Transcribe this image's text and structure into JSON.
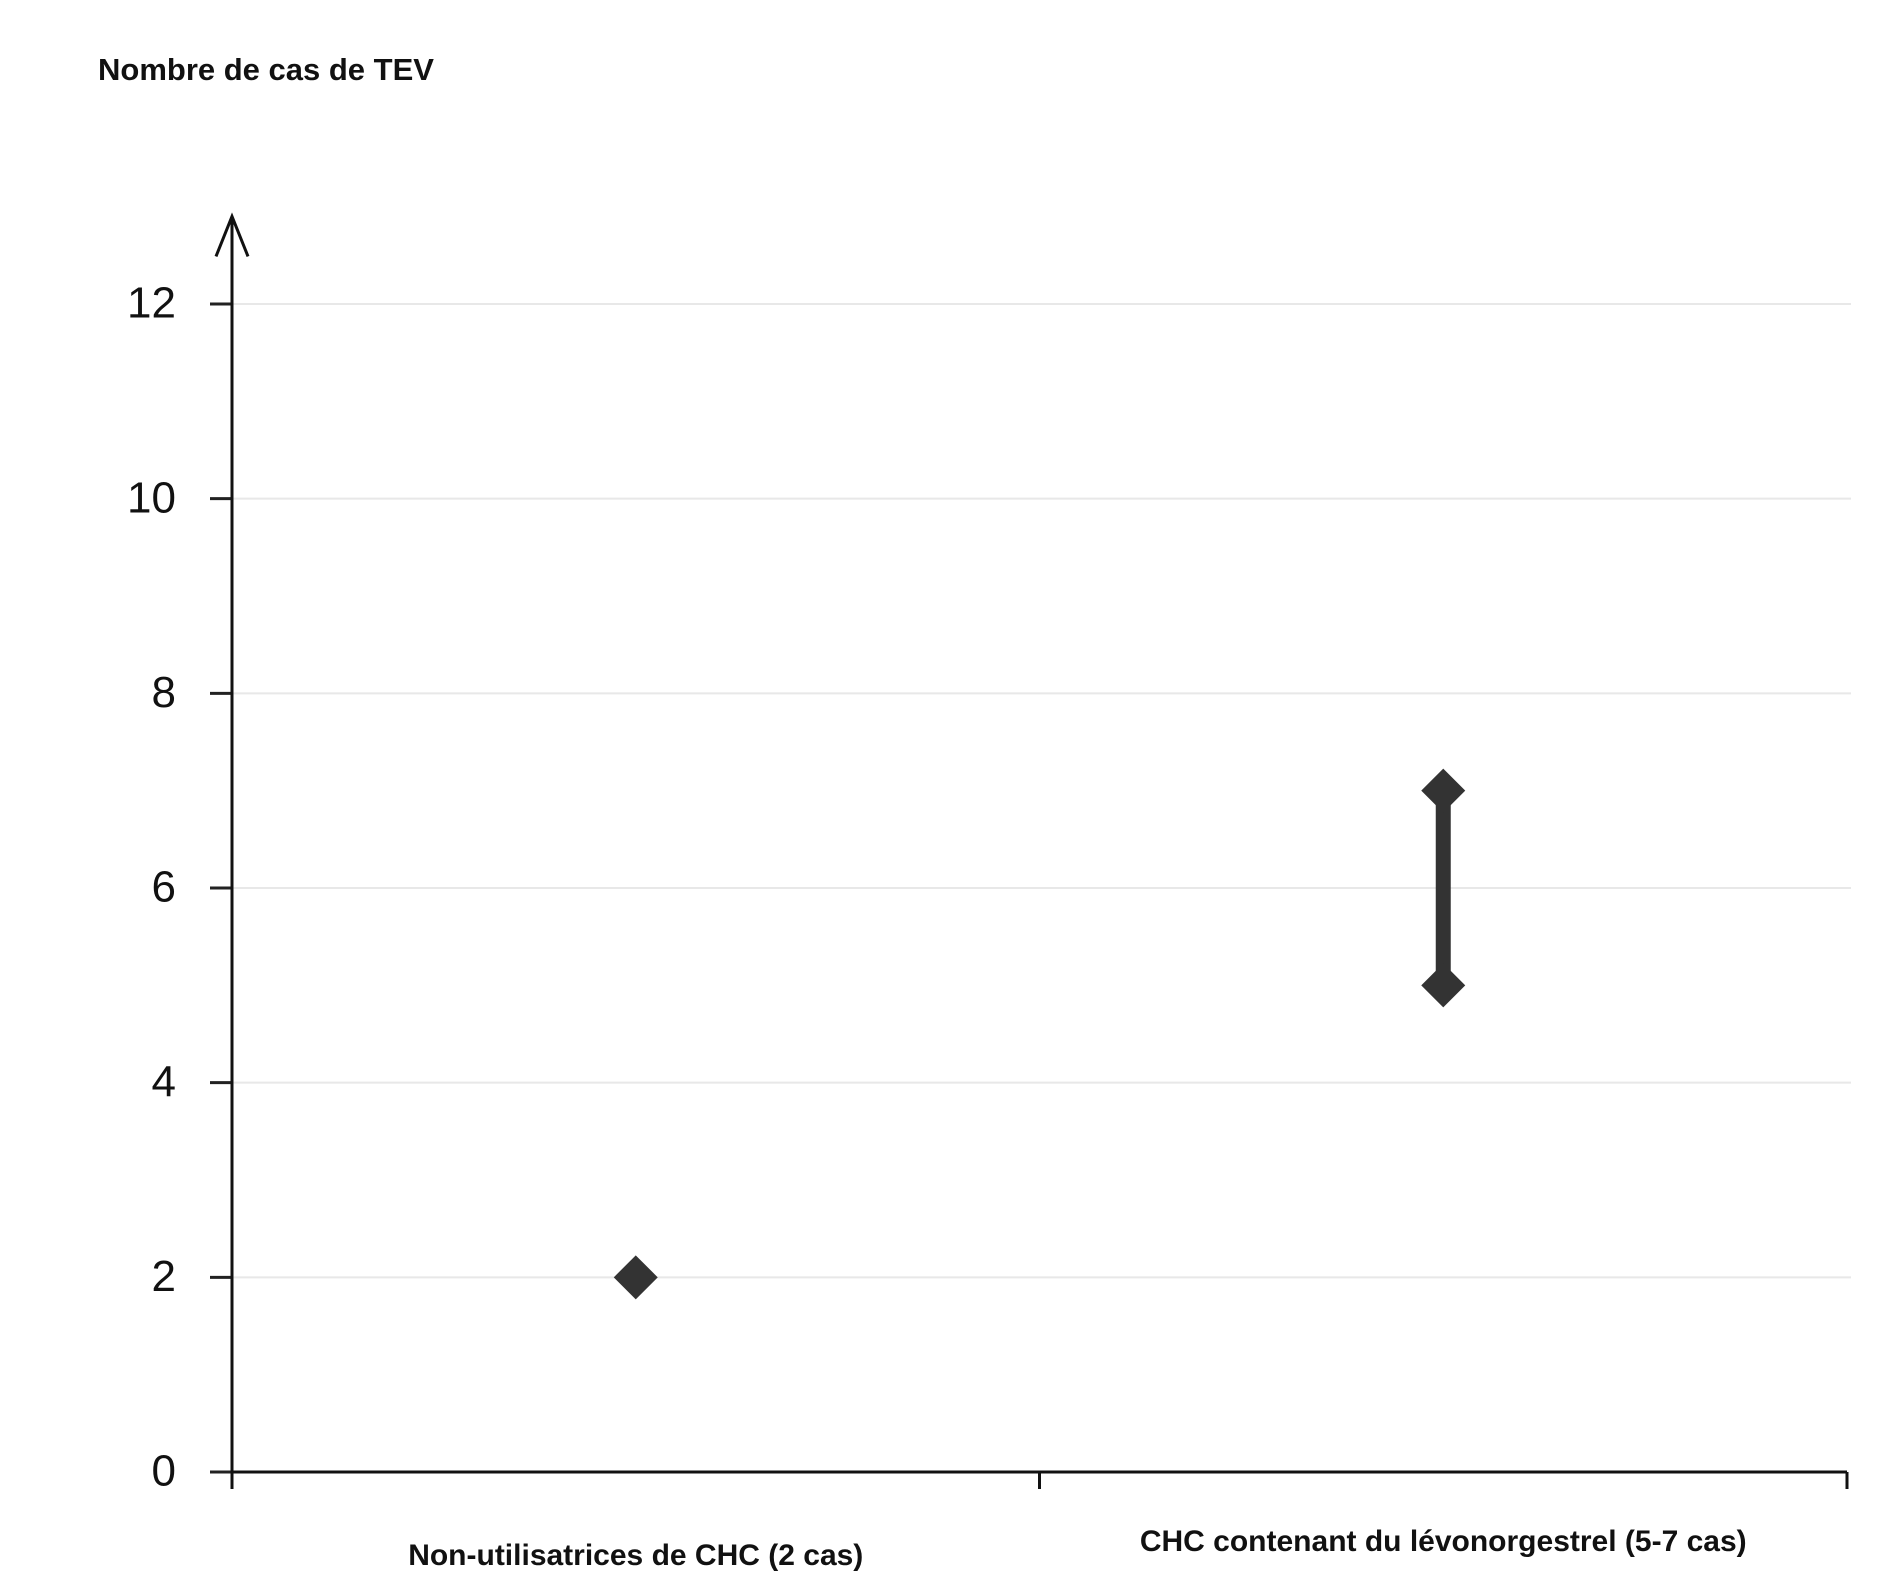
{
  "chart_data": {
    "type": "range",
    "y_label": "Nombre de cas de TEV",
    "categories": [
      "Non-utilisatrices de CHC (2 cas)",
      "CHC contenant du lévonorgestrel (5-7 cas)"
    ],
    "low": [
      2,
      5
    ],
    "high": [
      null,
      7
    ],
    "color": "#333333",
    "ylim": [
      0,
      12.9
    ],
    "yticks": [
      0,
      2,
      4,
      6,
      8,
      10,
      12
    ],
    "grid": true
  }
}
